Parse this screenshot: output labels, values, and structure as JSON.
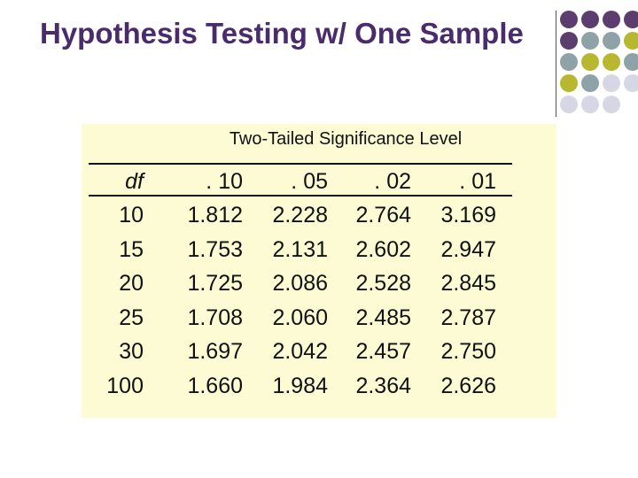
{
  "header": {
    "title": "Hypothesis Testing w/ One Sample"
  },
  "table": {
    "caption": "Two-Tailed Significance Level",
    "columns": [
      "df",
      ". 10",
      ". 05",
      ". 02",
      ". 01"
    ],
    "rows": [
      [
        "10",
        "1.812",
        "2.228",
        "2.764",
        "3.169"
      ],
      [
        "15",
        "1.753",
        "2.131",
        "2.602",
        "2.947"
      ],
      [
        "20",
        "1.725",
        "2.086",
        "2.528",
        "2.845"
      ],
      [
        "25",
        "1.708",
        "2.060",
        "2.485",
        "2.787"
      ],
      [
        "30",
        "1.697",
        "2.042",
        "2.457",
        "2.750"
      ],
      [
        "100",
        "1.660",
        "1.984",
        "2.364",
        "2.626"
      ]
    ]
  }
}
